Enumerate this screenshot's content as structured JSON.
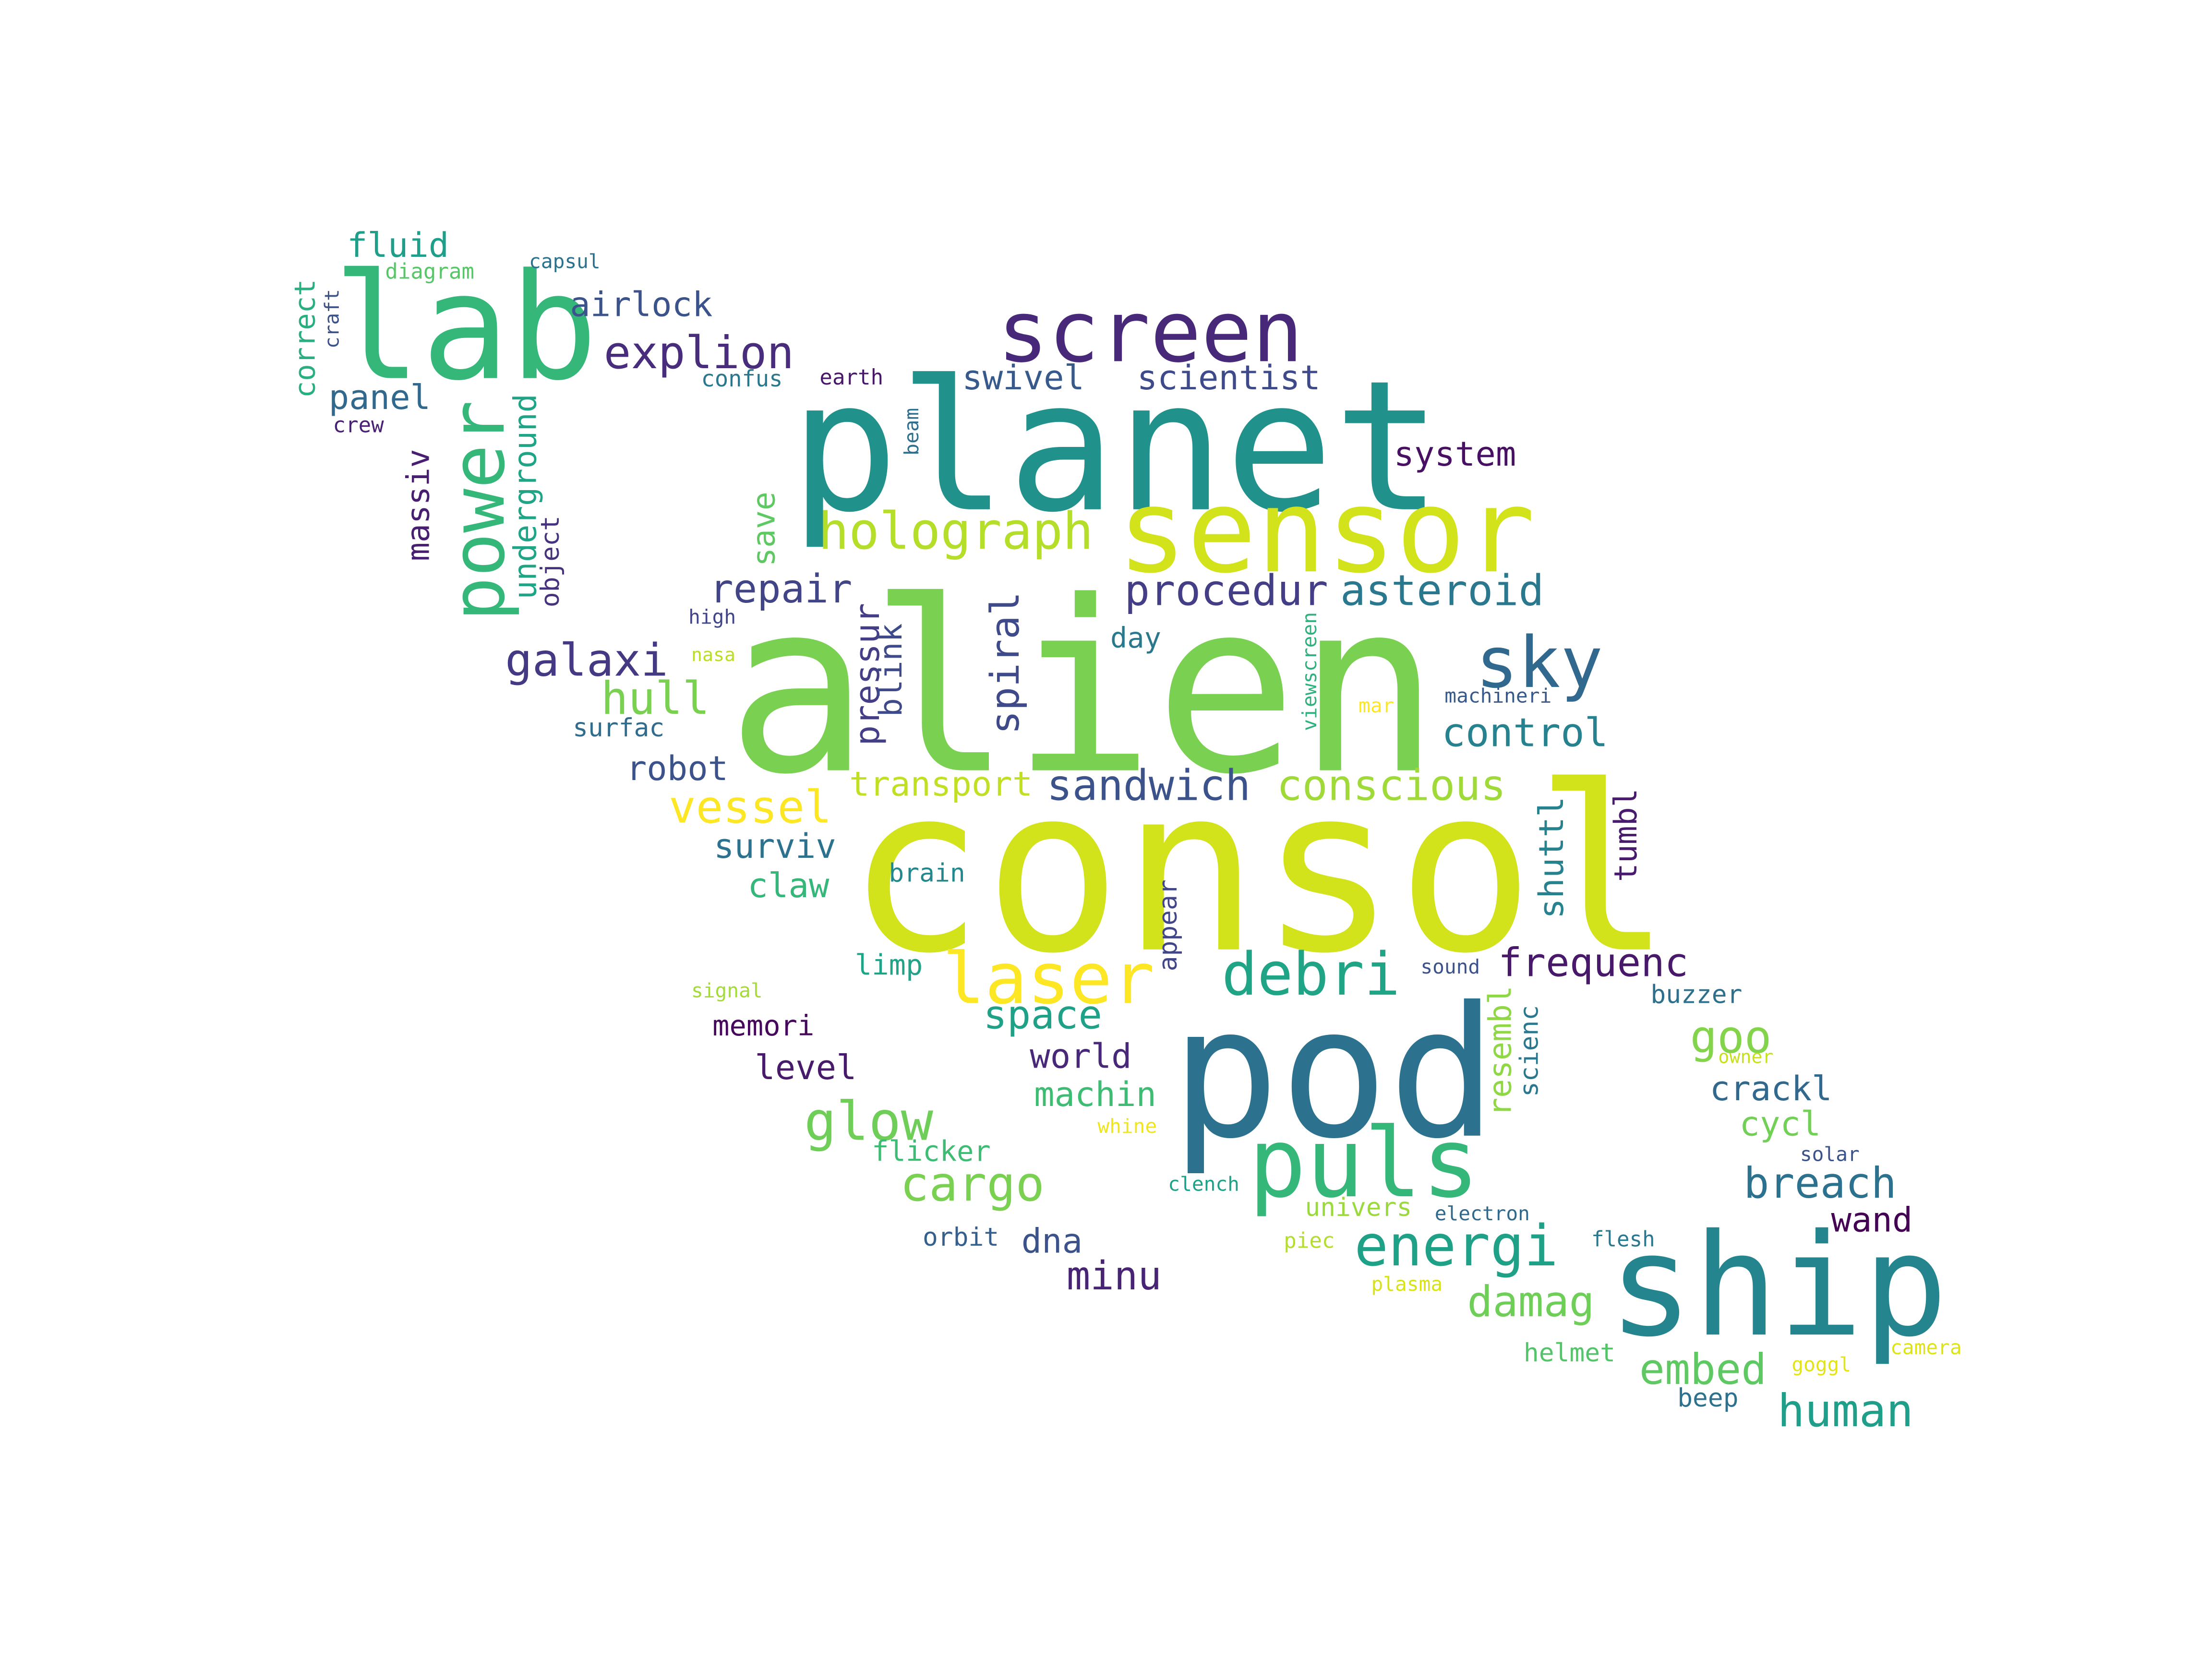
{
  "word_cloud": {
    "words": [
      {
        "text": "alien",
        "color": "#7ad151",
        "vertical": false
      },
      {
        "text": "consol",
        "color": "#d2e21b",
        "vertical": false
      },
      {
        "text": "planet",
        "color": "#21918c",
        "vertical": false
      },
      {
        "text": "pod",
        "color": "#2c728e",
        "vertical": false
      },
      {
        "text": "ship",
        "color": "#25858e",
        "vertical": false
      },
      {
        "text": "lab",
        "color": "#35b779",
        "vertical": false
      },
      {
        "text": "sensor",
        "color": "#d2e21b",
        "vertical": false
      },
      {
        "text": "screen",
        "color": "#482878",
        "vertical": false
      },
      {
        "text": "puls",
        "color": "#35b779",
        "vertical": false
      },
      {
        "text": "power",
        "color": "#35b779",
        "vertical": true
      },
      {
        "text": "laser",
        "color": "#fde725",
        "vertical": false
      },
      {
        "text": "sky",
        "color": "#31688e",
        "vertical": false
      },
      {
        "text": "debri",
        "color": "#20a486",
        "vertical": false
      },
      {
        "text": "energi",
        "color": "#1fa187",
        "vertical": false
      },
      {
        "text": "holograph",
        "color": "#b5de2b",
        "vertical": false
      },
      {
        "text": "explion",
        "color": "#472d7b",
        "vertical": false
      },
      {
        "text": "glow",
        "color": "#6ece58",
        "vertical": false
      },
      {
        "text": "galaxi",
        "color": "#443983",
        "vertical": false
      },
      {
        "text": "asteroid",
        "color": "#2a788e",
        "vertical": false
      },
      {
        "text": "procedur",
        "color": "#433e85",
        "vertical": false
      },
      {
        "text": "conscious",
        "color": "#a0da39",
        "vertical": false
      },
      {
        "text": "sandwich",
        "color": "#3b528b",
        "vertical": false
      },
      {
        "text": "vessel",
        "color": "#fde725",
        "vertical": false
      },
      {
        "text": "cargo",
        "color": "#7ad151",
        "vertical": false
      },
      {
        "text": "breach",
        "color": "#2c728e",
        "vertical": false
      },
      {
        "text": "human",
        "color": "#1f9e89",
        "vertical": false
      },
      {
        "text": "repair",
        "color": "#414487",
        "vertical": false
      },
      {
        "text": "hull",
        "color": "#7ad151",
        "vertical": false
      },
      {
        "text": "control",
        "color": "#26828e",
        "vertical": false
      },
      {
        "text": "frequenc",
        "color": "#48186a",
        "vertical": false
      },
      {
        "text": "spiral",
        "color": "#3e4a89",
        "vertical": true
      },
      {
        "text": "space",
        "color": "#1fa187",
        "vertical": false
      },
      {
        "text": "damag",
        "color": "#6ece58",
        "vertical": false
      },
      {
        "text": "embed",
        "color": "#5ec962",
        "vertical": false
      },
      {
        "text": "goo",
        "color": "#84d44b",
        "vertical": false
      },
      {
        "text": "minu",
        "color": "#482475",
        "vertical": false
      },
      {
        "text": "airlock",
        "color": "#3b528b",
        "vertical": false
      },
      {
        "text": "panel",
        "color": "#31688e",
        "vertical": false
      },
      {
        "text": "fluid",
        "color": "#1f9e89",
        "vertical": false
      },
      {
        "text": "scientist",
        "color": "#3e4a89",
        "vertical": false
      },
      {
        "text": "swivel",
        "color": "#38598c",
        "vertical": false
      },
      {
        "text": "system",
        "color": "#471063",
        "vertical": false
      },
      {
        "text": "underground",
        "color": "#20a486",
        "vertical": true
      },
      {
        "text": "massiv",
        "color": "#481f70",
        "vertical": true
      },
      {
        "text": "transport",
        "color": "#c2df23",
        "vertical": false
      },
      {
        "text": "robot",
        "color": "#3b528b",
        "vertical": false
      },
      {
        "text": "surviv",
        "color": "#2c728e",
        "vertical": false
      },
      {
        "text": "claw",
        "color": "#35b779",
        "vertical": false
      },
      {
        "text": "machin",
        "color": "#3fbc73",
        "vertical": false
      },
      {
        "text": "world",
        "color": "#482878",
        "vertical": false
      },
      {
        "text": "level",
        "color": "#481a6c",
        "vertical": false
      },
      {
        "text": "crackl",
        "color": "#31688e",
        "vertical": false
      },
      {
        "text": "cycl",
        "color": "#73d056",
        "vertical": false
      },
      {
        "text": "wand",
        "color": "#440154",
        "vertical": false
      },
      {
        "text": "dna",
        "color": "#3b528b",
        "vertical": false
      },
      {
        "text": "pressur",
        "color": "#433e85",
        "vertical": true
      },
      {
        "text": "blink",
        "color": "#3e4a89",
        "vertical": true
      },
      {
        "text": "shuttl",
        "color": "#26828e",
        "vertical": true
      },
      {
        "text": "tumbl",
        "color": "#481b6d",
        "vertical": true
      },
      {
        "text": "save",
        "color": "#5ec962",
        "vertical": true
      },
      {
        "text": "resembl",
        "color": "#8fd744",
        "vertical": true
      },
      {
        "text": "correct",
        "color": "#29af7f",
        "vertical": true
      },
      {
        "text": "object",
        "color": "#46327e",
        "vertical": true
      },
      {
        "text": "appear",
        "color": "#404688",
        "vertical": true
      },
      {
        "text": "scienc",
        "color": "#2a788e",
        "vertical": true
      },
      {
        "text": "memori",
        "color": "#46085c",
        "vertical": false
      },
      {
        "text": "flicker",
        "color": "#3dbc74",
        "vertical": false
      },
      {
        "text": "limp",
        "color": "#20a386",
        "vertical": false
      },
      {
        "text": "univers",
        "color": "#9bd93c",
        "vertical": false
      },
      {
        "text": "helmet",
        "color": "#52c569",
        "vertical": false
      },
      {
        "text": "buzzer",
        "color": "#2d708e",
        "vertical": false
      },
      {
        "text": "orbit",
        "color": "#355f8d",
        "vertical": false
      },
      {
        "text": "surfac",
        "color": "#2f6c8e",
        "vertical": false
      },
      {
        "text": "confus",
        "color": "#2a788e",
        "vertical": false
      },
      {
        "text": "earth",
        "color": "#481769",
        "vertical": false
      },
      {
        "text": "crew",
        "color": "#482173",
        "vertical": false
      },
      {
        "text": "diagram",
        "color": "#56c667",
        "vertical": false
      },
      {
        "text": "capsul",
        "color": "#2c728e",
        "vertical": false
      },
      {
        "text": "craft",
        "color": "#3b528b",
        "vertical": true
      },
      {
        "text": "beam",
        "color": "#2e6e8e",
        "vertical": true
      },
      {
        "text": "day",
        "color": "#2a788e",
        "vertical": false
      },
      {
        "text": "brain",
        "color": "#23888e",
        "vertical": false
      },
      {
        "text": "high",
        "color": "#414487",
        "vertical": false
      },
      {
        "text": "nasa",
        "color": "#b8de29",
        "vertical": false
      },
      {
        "text": "viewscreen",
        "color": "#2db27d",
        "vertical": true
      },
      {
        "text": "machineri",
        "color": "#38598c",
        "vertical": false
      },
      {
        "text": "mar",
        "color": "#fde725",
        "vertical": false
      },
      {
        "text": "sound",
        "color": "#3b528b",
        "vertical": false
      },
      {
        "text": "signal",
        "color": "#a5db36",
        "vertical": false
      },
      {
        "text": "clench",
        "color": "#1fa187",
        "vertical": false
      },
      {
        "text": "whine",
        "color": "#f1e51d",
        "vertical": false
      },
      {
        "text": "electron",
        "color": "#30698e",
        "vertical": false
      },
      {
        "text": "piec",
        "color": "#b5de2b",
        "vertical": false
      },
      {
        "text": "flesh",
        "color": "#2a788e",
        "vertical": false
      },
      {
        "text": "plasma",
        "color": "#d8e219",
        "vertical": false
      },
      {
        "text": "owner",
        "color": "#c8e020",
        "vertical": false
      },
      {
        "text": "solar",
        "color": "#3b528b",
        "vertical": false
      },
      {
        "text": "goggl",
        "color": "#e2e418",
        "vertical": false
      },
      {
        "text": "camera",
        "color": "#dde318",
        "vertical": false
      },
      {
        "text": "beep",
        "color": "#2c728e",
        "vertical": false
      }
    ]
  }
}
